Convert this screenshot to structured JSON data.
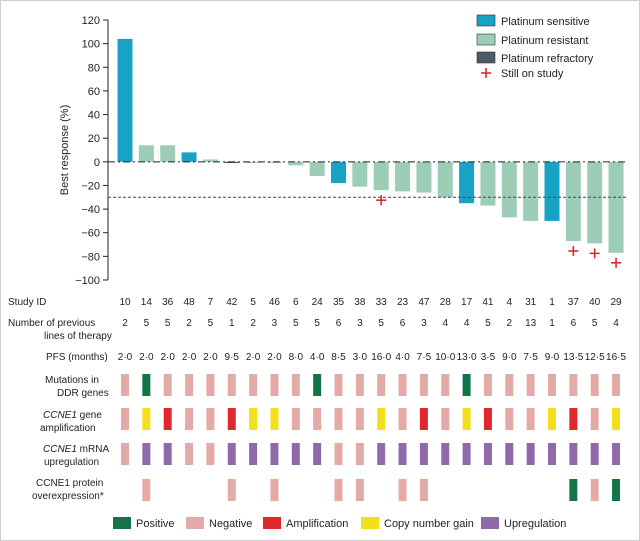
{
  "chart_data": {
    "type": "bar",
    "ylabel": "Best response (%)",
    "ylim": [
      -100,
      120
    ],
    "yticks": [
      -100,
      -80,
      -60,
      -40,
      -20,
      0,
      20,
      40,
      60,
      80,
      100,
      120
    ],
    "threshold": -30,
    "colors": {
      "Platinum sensitive": "#16a3c6",
      "Platinum resistant": "#9ecdb7",
      "Platinum refractory": "#4a5a66",
      "still_on_study": "#e0292c",
      "Positive": "#127447",
      "Negative": "#e3aaa8",
      "Amplification": "#e0292c",
      "Copy number gain": "#f4e01a",
      "Upregulation": "#8e6aab"
    },
    "legend": {
      "series": [
        "Platinum sensitive",
        "Platinum resistant",
        "Platinum refractory"
      ],
      "marker_label": "Still on study",
      "bottom": [
        "Positive",
        "Negative",
        "Amplification",
        "Copy number gain",
        "Upregulation"
      ]
    },
    "patients": [
      {
        "study_id": "10",
        "lines": "2",
        "pfs": "2·0",
        "response": 104,
        "status": "Platinum sensitive",
        "on_study": false,
        "ddr": "Negative",
        "ccne1_amp": "Negative",
        "mrna": "Negative",
        "protein": null
      },
      {
        "study_id": "14",
        "lines": "5",
        "pfs": "2·0",
        "response": 14,
        "status": "Platinum resistant",
        "on_study": false,
        "ddr": "Positive",
        "ccne1_amp": "Copy number gain",
        "mrna": "Upregulation",
        "protein": "Negative"
      },
      {
        "study_id": "36",
        "lines": "5",
        "pfs": "2·0",
        "response": 14,
        "status": "Platinum resistant",
        "on_study": false,
        "ddr": "Negative",
        "ccne1_amp": "Amplification",
        "mrna": "Upregulation",
        "protein": null
      },
      {
        "study_id": "48",
        "lines": "2",
        "pfs": "2·0",
        "response": 8,
        "status": "Platinum sensitive",
        "on_study": false,
        "ddr": "Negative",
        "ccne1_amp": "Negative",
        "mrna": "Negative",
        "protein": null
      },
      {
        "study_id": "7",
        "lines": "5",
        "pfs": "2·0",
        "response": 2,
        "status": "Platinum resistant",
        "on_study": false,
        "ddr": "Negative",
        "ccne1_amp": "Negative",
        "mrna": "Negative",
        "protein": null
      },
      {
        "study_id": "42",
        "lines": "1",
        "pfs": "9·5",
        "response": -1,
        "status": "Platinum refractory",
        "on_study": false,
        "ddr": "Negative",
        "ccne1_amp": "Amplification",
        "mrna": "Upregulation",
        "protein": "Negative"
      },
      {
        "study_id": "5",
        "lines": "2",
        "pfs": "2·0",
        "response": -1,
        "status": "Platinum resistant",
        "on_study": false,
        "ddr": "Negative",
        "ccne1_amp": "Copy number gain",
        "mrna": "Upregulation",
        "protein": null
      },
      {
        "study_id": "46",
        "lines": "3",
        "pfs": "2·0",
        "response": -1,
        "status": "Platinum resistant",
        "on_study": false,
        "ddr": "Negative",
        "ccne1_amp": "Copy number gain",
        "mrna": "Upregulation",
        "protein": "Negative"
      },
      {
        "study_id": "6",
        "lines": "5",
        "pfs": "8·0",
        "response": -3,
        "status": "Platinum resistant",
        "on_study": false,
        "ddr": "Negative",
        "ccne1_amp": "Negative",
        "mrna": "Upregulation",
        "protein": null
      },
      {
        "study_id": "24",
        "lines": "5",
        "pfs": "4·0",
        "response": -12,
        "status": "Platinum resistant",
        "on_study": false,
        "ddr": "Positive",
        "ccne1_amp": "Negative",
        "mrna": "Upregulation",
        "protein": null
      },
      {
        "study_id": "35",
        "lines": "6",
        "pfs": "8·5",
        "response": -18,
        "status": "Platinum sensitive",
        "on_study": false,
        "ddr": "Negative",
        "ccne1_amp": "Negative",
        "mrna": "Negative",
        "protein": "Negative"
      },
      {
        "study_id": "38",
        "lines": "3",
        "pfs": "3·0",
        "response": -21,
        "status": "Platinum resistant",
        "on_study": false,
        "ddr": "Negative",
        "ccne1_amp": "Negative",
        "mrna": "Negative",
        "protein": "Negative"
      },
      {
        "study_id": "33",
        "lines": "5",
        "pfs": "16·0",
        "response": -24,
        "status": "Platinum resistant",
        "on_study": true,
        "ddr": "Negative",
        "ccne1_amp": "Copy number gain",
        "mrna": "Upregulation",
        "protein": null
      },
      {
        "study_id": "23",
        "lines": "6",
        "pfs": "4·0",
        "response": -25,
        "status": "Platinum resistant",
        "on_study": false,
        "ddr": "Negative",
        "ccne1_amp": "Negative",
        "mrna": "Upregulation",
        "protein": "Negative"
      },
      {
        "study_id": "47",
        "lines": "3",
        "pfs": "7·5",
        "response": -26,
        "status": "Platinum resistant",
        "on_study": false,
        "ddr": "Negative",
        "ccne1_amp": "Amplification",
        "mrna": "Upregulation",
        "protein": "Negative"
      },
      {
        "study_id": "28",
        "lines": "4",
        "pfs": "10·0",
        "response": -30,
        "status": "Platinum resistant",
        "on_study": false,
        "ddr": "Negative",
        "ccne1_amp": "Negative",
        "mrna": "Upregulation",
        "protein": null
      },
      {
        "study_id": "17",
        "lines": "4",
        "pfs": "13·0",
        "response": -35,
        "status": "Platinum sensitive",
        "on_study": false,
        "ddr": "Positive",
        "ccne1_amp": "Copy number gain",
        "mrna": "Upregulation",
        "protein": null
      },
      {
        "study_id": "41",
        "lines": "5",
        "pfs": "3·5",
        "response": -37,
        "status": "Platinum resistant",
        "on_study": false,
        "ddr": "Negative",
        "ccne1_amp": "Amplification",
        "mrna": "Upregulation",
        "protein": null
      },
      {
        "study_id": "4",
        "lines": "2",
        "pfs": "9·0",
        "response": -47,
        "status": "Platinum resistant",
        "on_study": false,
        "ddr": "Negative",
        "ccne1_amp": "Negative",
        "mrna": "Upregulation",
        "protein": null
      },
      {
        "study_id": "31",
        "lines": "13",
        "pfs": "7·5",
        "response": -50,
        "status": "Platinum resistant",
        "on_study": false,
        "ddr": "Negative",
        "ccne1_amp": "Negative",
        "mrna": "Upregulation",
        "protein": null
      },
      {
        "study_id": "1",
        "lines": "1",
        "pfs": "9·0",
        "response": -50,
        "status": "Platinum sensitive",
        "on_study": false,
        "ddr": "Negative",
        "ccne1_amp": "Copy number gain",
        "mrna": "Upregulation",
        "protein": null
      },
      {
        "study_id": "37",
        "lines": "6",
        "pfs": "13·5",
        "response": -67,
        "status": "Platinum resistant",
        "on_study": true,
        "ddr": "Negative",
        "ccne1_amp": "Amplification",
        "mrna": "Upregulation",
        "protein": "Positive"
      },
      {
        "study_id": "40",
        "lines": "5",
        "pfs": "12·5",
        "response": -69,
        "status": "Platinum resistant",
        "on_study": true,
        "ddr": "Negative",
        "ccne1_amp": "Negative",
        "mrna": "Upregulation",
        "protein": "Negative"
      },
      {
        "study_id": "29",
        "lines": "4",
        "pfs": "16·5",
        "response": -77,
        "status": "Platinum resistant",
        "on_study": true,
        "ddr": "Negative",
        "ccne1_amp": "Copy number gain",
        "mrna": "Upregulation",
        "protein": "Positive"
      }
    ]
  },
  "rows": {
    "study_id": "Study ID",
    "lines_1": "Number of previous",
    "lines_2": "lines of therapy",
    "pfs": "PFS (months)",
    "ddr_1": "Mutations in",
    "ddr_2": "DDR genes",
    "amp_1_italic": "CCNE1",
    "amp_1_rest": " gene",
    "amp_2": "amplification",
    "mrna_1_italic": "CCNE1",
    "mrna_1_rest": " mRNA",
    "mrna_2": "upregulation",
    "prot_1": "CCNE1 protein",
    "prot_2": "overexpression*"
  }
}
